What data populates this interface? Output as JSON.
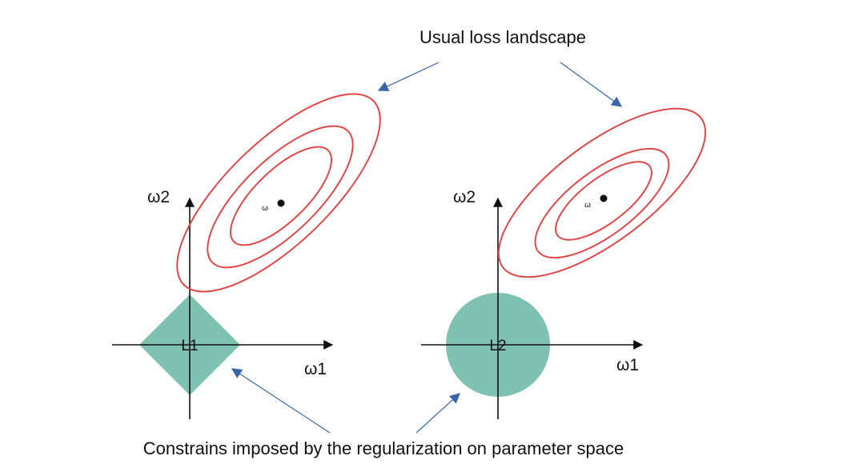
{
  "top_label": "Usual loss landscape",
  "bottom_label": "Constrains imposed by the regularization on parameter space",
  "colors": {
    "contour": "#e04848",
    "constraint": "#7fc2b2",
    "axis": "#111111",
    "pointer": "#3a66a8"
  },
  "left_panel": {
    "x_axis_label": "ω1",
    "y_axis_label": "ω2",
    "region_label": "L1",
    "optimum_label": "ω"
  },
  "right_panel": {
    "x_axis_label": "ω1",
    "y_axis_label": "ω2",
    "region_label": "L2",
    "optimum_label": "ω"
  }
}
